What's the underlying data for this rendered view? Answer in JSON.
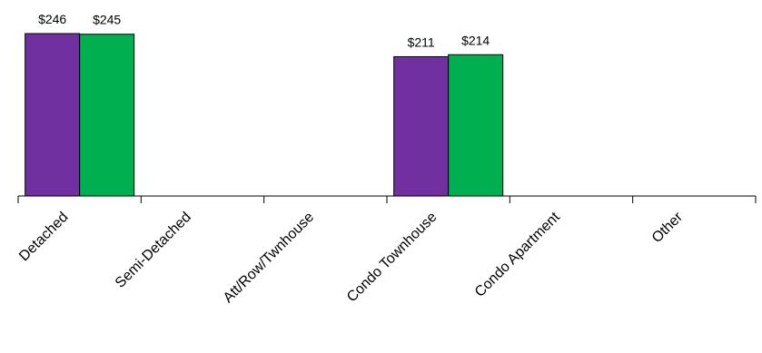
{
  "chart_data": {
    "type": "bar",
    "categories": [
      "Detached",
      "Semi-Detached",
      "Att/Row/Twnhouse",
      "Condo Townhouse",
      "Condo Apartment",
      "Other"
    ],
    "series": [
      {
        "color": "#7030A0",
        "values": [
          246,
          null,
          null,
          211,
          null,
          null
        ],
        "labels": [
          "$246",
          "",
          "",
          "$211",
          "",
          ""
        ]
      },
      {
        "color": "#00B050",
        "values": [
          245,
          null,
          null,
          214,
          null,
          null
        ],
        "labels": [
          "$245",
          "",
          "",
          "$214",
          "",
          ""
        ]
      }
    ],
    "title": "",
    "xlabel": "",
    "ylabel": "",
    "ylim": [
      0,
      246
    ],
    "grid": false,
    "legend": "none"
  }
}
